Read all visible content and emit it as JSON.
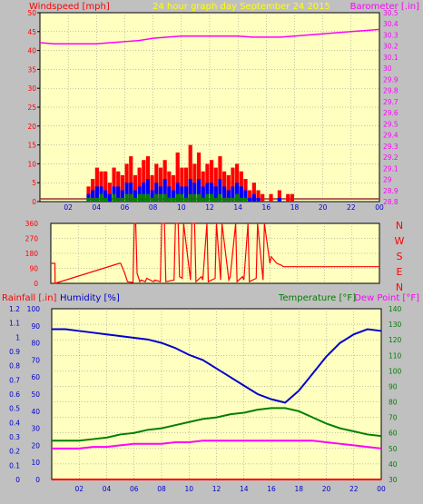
{
  "header": {
    "left_label": "Windspeed [mph]",
    "center_label": "24 hour graph day   September 24 2015",
    "right_label": "Barometer [.in]"
  },
  "panel3_header": {
    "rainfall_label": "Rainfall [.in]",
    "humidity_label": "Humidity [%]",
    "temperature_label": "Temperature [°F]",
    "dewpoint_label": "Dew Point [°F]"
  },
  "direction_letters": [
    "N",
    "W",
    "S",
    "E",
    "N"
  ],
  "x_ticks": [
    "02",
    "04",
    "06",
    "08",
    "10",
    "12",
    "14",
    "16",
    "18",
    "20",
    "22",
    "00"
  ],
  "colors": {
    "background": "#c0c0c0",
    "plot_bg": "#ffffc0",
    "windspeed": "#ff0000",
    "gust_secondary": "#0000ff",
    "gust_tertiary": "#008000",
    "barometer": "#ff00ff",
    "wind_direction": "#ff0000",
    "humidity": "#0000cd",
    "temperature": "#008000",
    "dewpoint": "#ff00ff",
    "rainfall": "#ff0000",
    "header_text": "#ffff00"
  },
  "chart_data": [
    {
      "type": "bar",
      "name": "windspeed_barometer",
      "title": "24 hour graph day   September 24 2015",
      "ylabel_left": "Windspeed [mph]",
      "ylabel_right": "Barometer [.in]",
      "ylim_left": [
        0,
        50
      ],
      "ylim_right": [
        28.8,
        30.5
      ],
      "left_ticks": [
        0,
        5,
        10,
        15,
        20,
        25,
        30,
        35,
        40,
        45,
        50
      ],
      "right_ticks": [
        "28.8",
        "28.9",
        "29",
        "29.1",
        "29.2",
        "29.3",
        "29.4",
        "29.5",
        "29.6",
        "29.7",
        "29.8",
        "29.9",
        "30",
        "30.1",
        "30.2",
        "30.3",
        "30.4",
        "30.5"
      ],
      "x_hours": [
        0,
        1,
        2,
        3,
        4,
        5,
        6,
        7,
        8,
        9,
        10,
        11,
        12,
        13,
        14,
        15,
        16,
        17,
        18,
        19,
        20,
        21,
        22,
        23,
        24
      ],
      "barometer": [
        30.23,
        30.22,
        30.22,
        30.22,
        30.22,
        30.23,
        30.24,
        30.25,
        30.27,
        30.28,
        30.29,
        30.29,
        30.29,
        30.29,
        30.29,
        30.28,
        30.28,
        30.28,
        30.29,
        30.3,
        30.31,
        30.32,
        30.33,
        30.34,
        30.35
      ],
      "wind_gust_bars": [
        0,
        0,
        0,
        0,
        0,
        0,
        0,
        0,
        0,
        0,
        0,
        4,
        6,
        9,
        8,
        8,
        5,
        9,
        8,
        7,
        10,
        12,
        7,
        9,
        11,
        12,
        7,
        10,
        9,
        11,
        8,
        7,
        13,
        9,
        9,
        15,
        10,
        13,
        8,
        10,
        11,
        9,
        12,
        8,
        7,
        9,
        10,
        8,
        6,
        3,
        5,
        3,
        2,
        0,
        2,
        0,
        3,
        0,
        2,
        2,
        0,
        0,
        0,
        0,
        0,
        0,
        0,
        0,
        0,
        0,
        0,
        0,
        0,
        0,
        0,
        0,
        0,
        0,
        0,
        0
      ],
      "wind_avg_bars": [
        0,
        0,
        0,
        0,
        0,
        0,
        0,
        0,
        0,
        0,
        0,
        2,
        3,
        4,
        4,
        3,
        2,
        4,
        4,
        3,
        5,
        5,
        3,
        4,
        5,
        6,
        3,
        5,
        4,
        6,
        4,
        3,
        5,
        4,
        4,
        6,
        5,
        6,
        4,
        5,
        5,
        4,
        6,
        4,
        3,
        4,
        5,
        4,
        3,
        1,
        2,
        1,
        0,
        0,
        0,
        0,
        1,
        0,
        0,
        0,
        0,
        0,
        0,
        0,
        0,
        0,
        0,
        0,
        0,
        0,
        0,
        0,
        0,
        0,
        0,
        0,
        0,
        0,
        0,
        0
      ],
      "wind_min_bars": [
        0,
        0,
        0,
        0,
        0,
        0,
        0,
        0,
        0,
        0,
        0,
        1,
        1,
        1,
        2,
        1,
        0,
        2,
        1,
        1,
        2,
        2,
        1,
        2,
        2,
        2,
        1,
        2,
        2,
        2,
        1,
        1,
        2,
        2,
        1,
        2,
        2,
        2,
        1,
        2,
        2,
        1,
        2,
        1,
        1,
        1,
        2,
        1,
        1,
        0,
        0,
        0,
        0,
        0,
        0,
        0,
        0,
        0,
        0,
        0,
        0,
        0,
        0,
        0,
        0,
        0,
        0,
        0,
        0,
        0,
        0,
        0,
        0,
        0,
        0,
        0,
        0,
        0,
        0,
        0
      ]
    },
    {
      "type": "line",
      "name": "wind_direction",
      "ylim": [
        0,
        360
      ],
      "y_ticks": [
        0,
        90,
        180,
        270,
        360
      ],
      "x_hours": [
        0,
        0.1,
        0.3,
        0.31,
        5,
        5.1,
        5.4,
        5.6,
        6,
        6.1,
        6.2,
        6.3,
        6.5,
        6.6,
        6.9,
        7,
        7.5,
        7.6,
        8,
        8.1,
        8.3,
        8.4,
        9,
        9.1,
        9.3,
        9.4,
        9.6,
        9.7,
        10.2,
        10.3,
        10.5,
        10.6,
        11,
        11.1,
        11.4,
        11.5,
        12,
        12.1,
        12.4,
        12.5,
        13,
        13.1,
        13.5,
        13.6,
        14,
        14.1,
        14.4,
        14.5,
        15,
        15.1,
        15.5,
        15.6,
        16,
        16.1,
        16.3,
        16.5,
        16.8,
        17,
        18,
        20,
        22,
        24
      ],
      "values": [
        120,
        120,
        120,
        0,
        120,
        120,
        60,
        10,
        5,
        360,
        360,
        60,
        10,
        20,
        10,
        30,
        10,
        20,
        10,
        360,
        360,
        10,
        20,
        360,
        360,
        40,
        30,
        360,
        20,
        360,
        360,
        10,
        40,
        20,
        360,
        10,
        30,
        360,
        20,
        360,
        20,
        40,
        360,
        10,
        40,
        20,
        360,
        10,
        30,
        360,
        20,
        360,
        120,
        160,
        140,
        120,
        110,
        100,
        100,
        100,
        100,
        100
      ]
    },
    {
      "type": "line",
      "name": "rain_humidity_temp_dew",
      "ylabel_left": "Rainfall [.in]",
      "ylabel_left2": "Humidity [%]",
      "ylabel_right": "Temperature [°F]",
      "ylabel_right2": "Dew Point [°F]",
      "rain_ticks": [
        "0",
        "0.1",
        "0.2",
        "0.3",
        "0.4",
        "0.5",
        "0.6",
        "0.7",
        "0.8",
        "0.9",
        "1",
        "1.1",
        "1.2"
      ],
      "humidity_ticks": [
        0,
        10,
        20,
        30,
        40,
        50,
        60,
        70,
        80,
        90,
        100
      ],
      "temp_ticks": [
        30,
        40,
        50,
        60,
        70,
        80,
        90,
        100,
        110,
        120,
        130,
        140
      ],
      "rain_ylim": [
        0,
        1.2
      ],
      "humidity_ylim": [
        0,
        100
      ],
      "temp_ylim": [
        30,
        140
      ],
      "x_hours": [
        0,
        1,
        2,
        3,
        4,
        5,
        6,
        7,
        8,
        9,
        10,
        11,
        12,
        13,
        14,
        15,
        16,
        17,
        18,
        19,
        20,
        21,
        22,
        23,
        24
      ],
      "humidity": [
        88,
        88,
        87,
        86,
        85,
        84,
        83,
        82,
        80,
        77,
        73,
        70,
        65,
        60,
        55,
        50,
        47,
        45,
        52,
        62,
        72,
        80,
        85,
        88,
        87
      ],
      "temperature": [
        55,
        55,
        55,
        56,
        57,
        59,
        60,
        62,
        63,
        65,
        67,
        69,
        70,
        72,
        73,
        75,
        76,
        76,
        74,
        70,
        66,
        63,
        61,
        59,
        58
      ],
      "dewpoint": [
        50,
        50,
        50,
        51,
        51,
        52,
        53,
        53,
        53,
        54,
        54,
        55,
        55,
        55,
        55,
        55,
        55,
        55,
        55,
        55,
        54,
        53,
        52,
        51,
        50
      ],
      "rainfall": [
        0,
        0,
        0,
        0,
        0,
        0,
        0,
        0,
        0,
        0,
        0,
        0,
        0,
        0,
        0,
        0,
        0,
        0,
        0,
        0,
        0,
        0,
        0,
        0,
        0
      ]
    }
  ]
}
